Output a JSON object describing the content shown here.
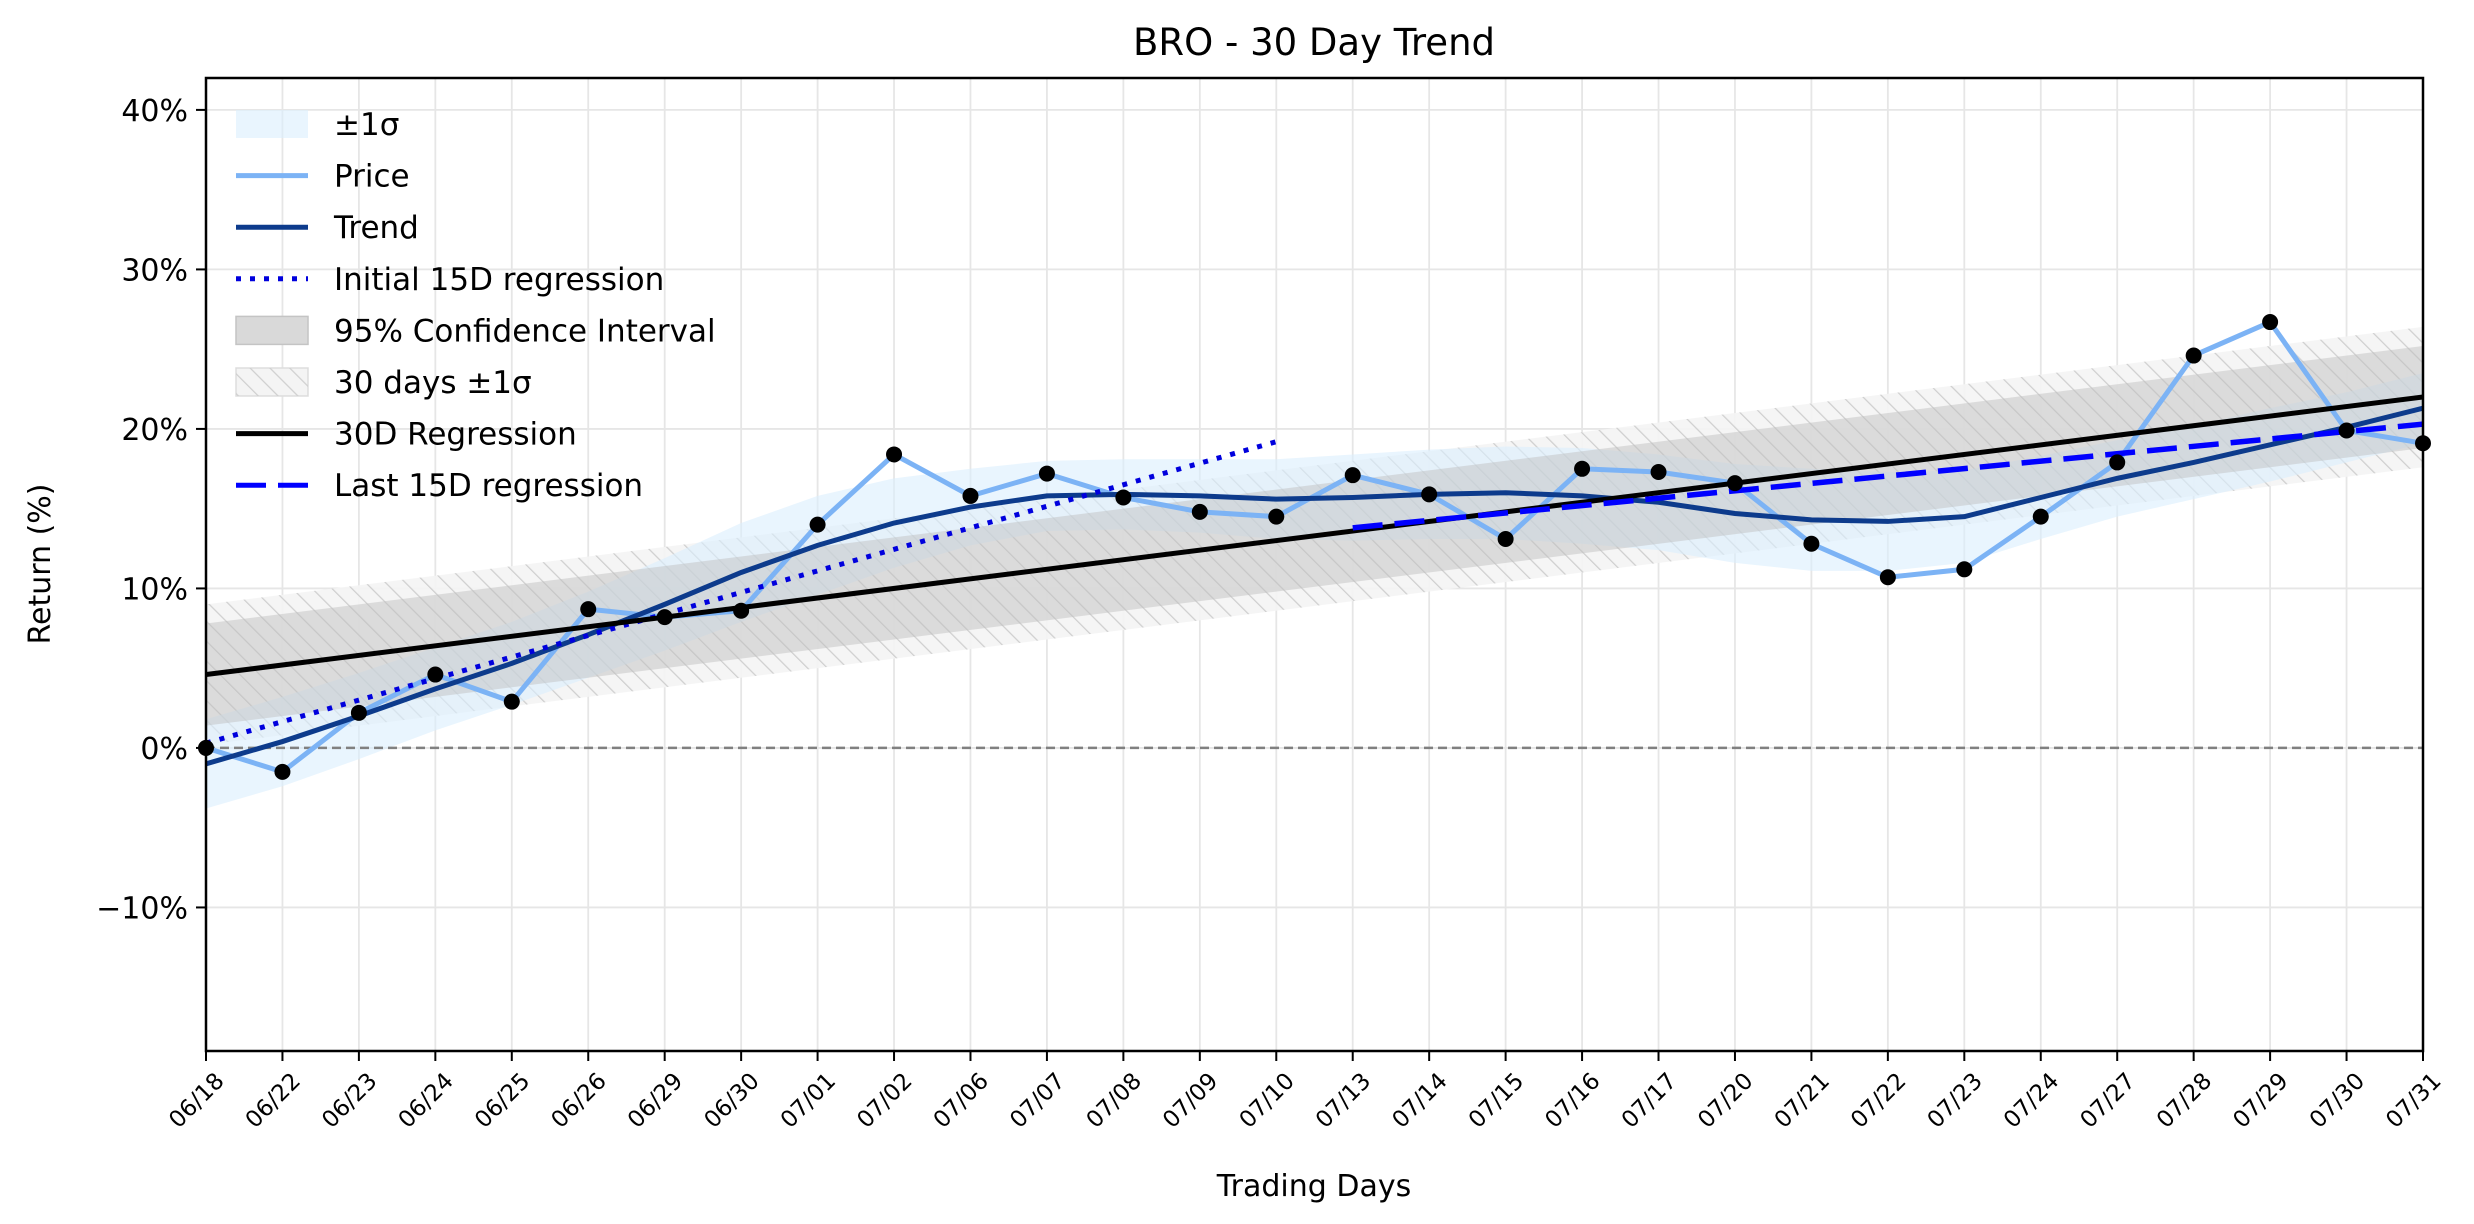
{
  "chart_data": {
    "type": "line",
    "title": "BRO - 30 Day Trend",
    "xlabel": "Trading Days",
    "ylabel": "Return (%)",
    "ylim": [
      -19,
      42
    ],
    "yticks": [
      -10,
      0,
      10,
      20,
      30,
      40
    ],
    "ytick_labels": [
      "−10%",
      "0%",
      "10%",
      "20%",
      "30%",
      "40%"
    ],
    "grid": true,
    "legend_position": "top-left",
    "categories": [
      "06/18",
      "06/22",
      "06/23",
      "06/24",
      "06/25",
      "06/26",
      "06/29",
      "06/30",
      "07/01",
      "07/02",
      "07/06",
      "07/07",
      "07/08",
      "07/09",
      "07/10",
      "07/13",
      "07/14",
      "07/15",
      "07/16",
      "07/17",
      "07/20",
      "07/21",
      "07/22",
      "07/23",
      "07/24",
      "07/27",
      "07/28",
      "07/29",
      "07/30",
      "07/31"
    ],
    "series": [
      {
        "name": "Price",
        "color": "#7cb3f5",
        "values": [
          0.0,
          -1.5,
          2.2,
          4.6,
          2.9,
          8.7,
          8.2,
          8.6,
          14.0,
          18.4,
          15.8,
          17.2,
          15.7,
          14.8,
          14.5,
          17.1,
          15.9,
          13.1,
          17.5,
          17.3,
          16.6,
          12.8,
          10.7,
          11.2,
          14.5,
          17.9,
          24.6,
          26.7,
          19.9,
          19.1
        ]
      },
      {
        "name": "Trend",
        "color": "#0d3b8c",
        "values": [
          -1.0,
          0.4,
          2.0,
          3.7,
          5.3,
          7.1,
          9.0,
          11.0,
          12.7,
          14.1,
          15.1,
          15.8,
          15.9,
          15.8,
          15.6,
          15.7,
          15.9,
          16.0,
          15.8,
          15.4,
          14.7,
          14.3,
          14.2,
          14.5,
          15.7,
          16.9,
          17.9,
          19.0,
          20.1,
          21.3
        ]
      },
      {
        "name": "Initial 15D regression",
        "color": "#0000dd",
        "x_start": 0,
        "x_end": 14,
        "y_start": 0.3,
        "y_end": 19.2
      },
      {
        "name": "30D Regression",
        "color": "#000000",
        "x_start": 0,
        "x_end": 29,
        "y_start": 4.6,
        "y_end": 22.0
      },
      {
        "name": "Last 15D regression",
        "color": "#0000ff",
        "x_start": 15,
        "x_end": 29,
        "y_start": 13.8,
        "y_end": 20.3
      },
      {
        "name": "95% Confidence Interval",
        "color": "#cccccc",
        "half_width": 3.2
      },
      {
        "name": "30 days ±1σ",
        "color": "#dddddd",
        "half_width": 4.4
      },
      {
        "name": "±1σ",
        "color": "#dbeefe",
        "sigma": [
          2.8,
          2.8,
          2.7,
          2.6,
          2.6,
          2.7,
          2.9,
          3.1,
          3.1,
          2.8,
          2.4,
          2.2,
          2.2,
          2.3,
          2.5,
          2.7,
          2.8,
          2.9,
          3.0,
          3.0,
          3.1,
          3.2,
          3.1,
          2.9,
          2.6,
          2.4,
          2.3,
          2.3,
          2.2,
          2.2
        ]
      }
    ],
    "zero_line": 0
  }
}
